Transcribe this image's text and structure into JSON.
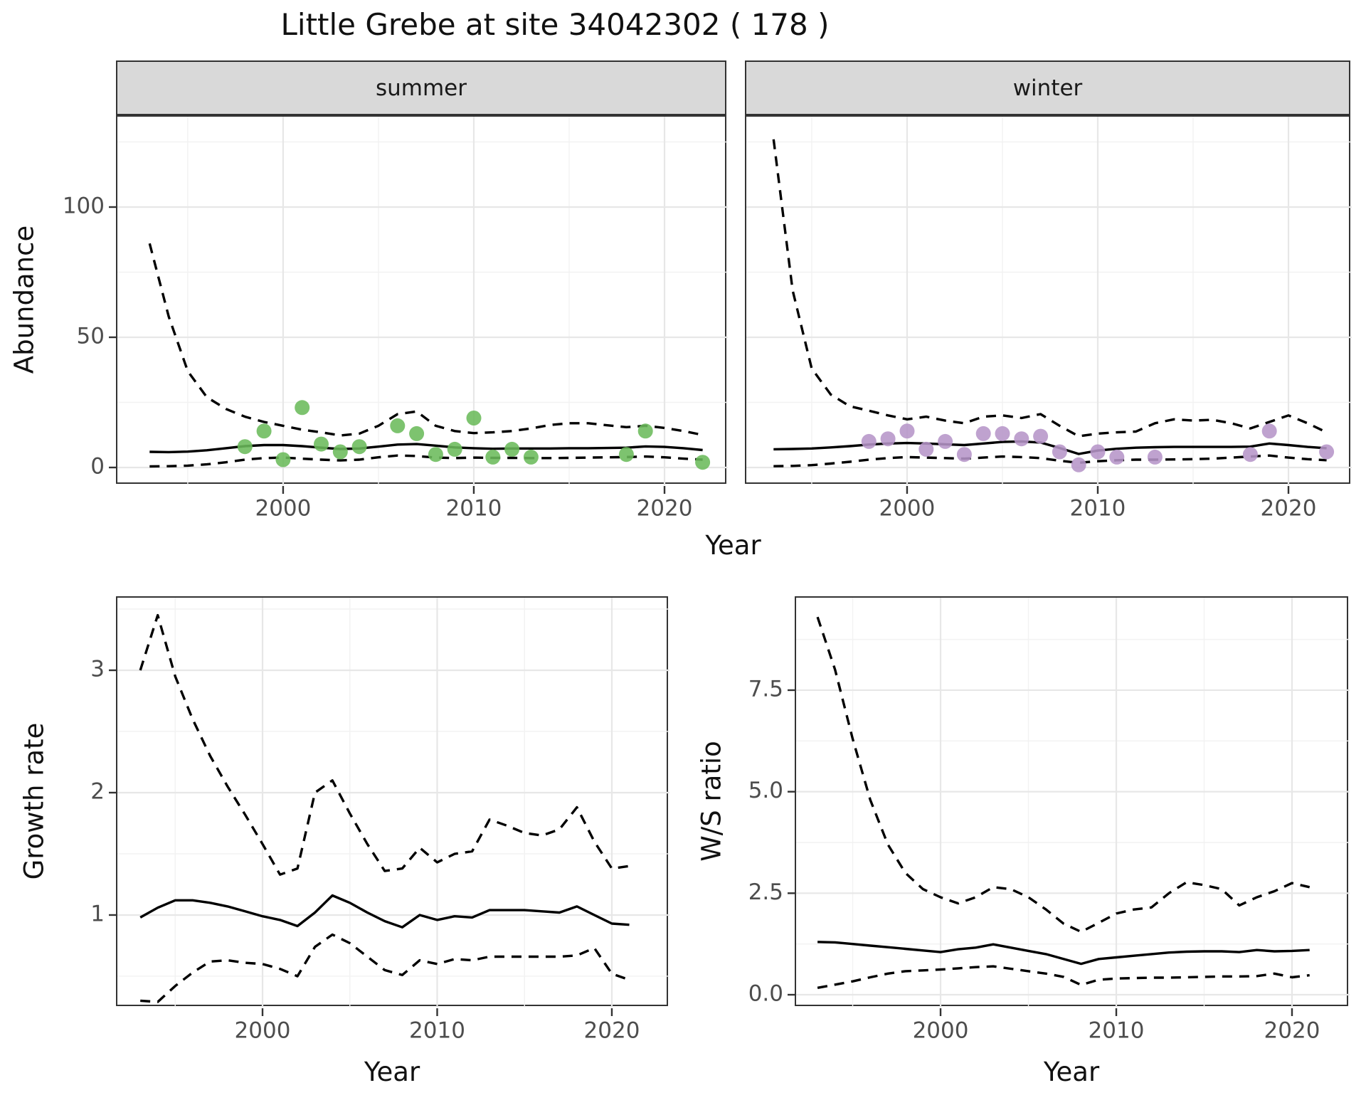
{
  "title": "Little Grebe at site 34042302 ( 178 )",
  "colors": {
    "summer_point": "#6BBB5B",
    "winter_point": "#B695C8",
    "strip_bg": "#D9D9D9",
    "grid_major": "#E7E7E7",
    "grid_minor": "#F2F2F2",
    "panel_border": "#333333",
    "tick_text": "#4D4D4D",
    "line": "#000000"
  },
  "axis_titles": {
    "top_y": "Abundance",
    "top_x": "Year",
    "bottom_left_y": "Growth rate",
    "bottom_left_x": "Year",
    "bottom_right_y": "W/S ratio",
    "bottom_right_x": "Year"
  },
  "chart_data": [
    {
      "type": "line",
      "facet": "summer",
      "ylabel": "Abundance",
      "xlabel": "Year",
      "xlim": [
        1991.31,
        2023.32
      ],
      "ylim": [
        -6.83,
        134.7
      ],
      "xticks": {
        "values": [
          2000,
          2010,
          2020
        ],
        "labels": [
          "2000",
          "2010",
          "2020"
        ]
      },
      "yticks": {
        "values": [
          0,
          50,
          100
        ],
        "labels": [
          "0",
          "50",
          "100"
        ]
      },
      "xminor": [
        1995,
        2005,
        2015
      ],
      "yminor": [
        25,
        75,
        125
      ],
      "grid": true,
      "legend": "none",
      "series": [
        {
          "name": "trend-median",
          "style": "solid",
          "years": [
            1993,
            1994,
            1995,
            1996,
            1997,
            1998,
            1999,
            2000,
            2001,
            2002,
            2003,
            2004,
            2005,
            2006,
            2007,
            2008,
            2009,
            2010,
            2011,
            2012,
            2013,
            2014,
            2015,
            2016,
            2017,
            2018,
            2019,
            2020,
            2021,
            2022
          ],
          "values": [
            6.0,
            5.9,
            6.1,
            6.6,
            7.4,
            8.2,
            8.6,
            8.6,
            8.2,
            7.6,
            7.1,
            7.3,
            8.0,
            8.8,
            9.0,
            8.4,
            7.7,
            7.4,
            7.2,
            7.3,
            7.3,
            7.3,
            7.4,
            7.4,
            7.5,
            7.6,
            8.1,
            7.9,
            7.4,
            6.7
          ]
        },
        {
          "name": "upper-credible",
          "style": "dashed",
          "years": [
            1993,
            1994,
            1995,
            1996,
            1997,
            1998,
            1999,
            2000,
            2001,
            2002,
            2003,
            2004,
            2005,
            2006,
            2007,
            2008,
            2009,
            2010,
            2011,
            2012,
            2013,
            2014,
            2015,
            2016,
            2017,
            2018,
            2019,
            2020,
            2021,
            2022
          ],
          "values": [
            86,
            58,
            37,
            27,
            22.5,
            19.5,
            17.5,
            16,
            14.5,
            13.5,
            12.3,
            13,
            16,
            20.5,
            21.5,
            16,
            14,
            13.2,
            13.5,
            14,
            15,
            16.3,
            17,
            17,
            16.2,
            15.5,
            16,
            15.2,
            14,
            12.5
          ]
        },
        {
          "name": "lower-credible",
          "style": "dashed",
          "years": [
            1993,
            1994,
            1995,
            1996,
            1997,
            1998,
            1999,
            2000,
            2001,
            2002,
            2003,
            2004,
            2005,
            2006,
            2007,
            2008,
            2009,
            2010,
            2011,
            2012,
            2013,
            2014,
            2015,
            2016,
            2017,
            2018,
            2019,
            2020,
            2021,
            2022
          ],
          "values": [
            0.4,
            0.5,
            0.7,
            1.2,
            2.0,
            3.0,
            3.6,
            3.8,
            3.4,
            3.0,
            2.7,
            3.0,
            3.9,
            4.6,
            4.4,
            3.8,
            3.6,
            3.8,
            3.7,
            3.7,
            3.6,
            3.6,
            3.7,
            3.8,
            3.9,
            4.0,
            4.2,
            3.9,
            3.4,
            3.0
          ]
        }
      ],
      "points": {
        "name": "observed-count-summer",
        "color": "#6BBB5B",
        "years": [
          1998,
          1999,
          2000,
          2001,
          2002,
          2003,
          2004,
          2006,
          2007,
          2008,
          2009,
          2010,
          2011,
          2012,
          2013,
          2018,
          2019,
          2022
        ],
        "values": [
          8,
          14,
          3,
          23,
          9,
          6,
          8,
          16,
          13,
          5,
          7,
          19,
          4,
          7,
          4,
          5,
          14,
          2
        ]
      }
    },
    {
      "type": "line",
      "facet": "winter",
      "ylabel": null,
      "xlabel": "Year",
      "xlim": [
        1991.57,
        2023.32
      ],
      "ylim": [
        -6.83,
        134.7
      ],
      "xticks": {
        "values": [
          2000,
          2010,
          2020
        ],
        "labels": [
          "2000",
          "2010",
          "2020"
        ]
      },
      "yticks": {
        "values": [],
        "labels": []
      },
      "xminor": [
        1995,
        2005,
        2015
      ],
      "yminor": [
        25,
        75,
        125
      ],
      "ygrid_major": [
        0,
        50,
        100
      ],
      "grid": true,
      "legend": "none",
      "series": [
        {
          "name": "trend-median",
          "style": "solid",
          "years": [
            1993,
            1994,
            1995,
            1996,
            1997,
            1998,
            1999,
            2000,
            2001,
            2002,
            2003,
            2004,
            2005,
            2006,
            2007,
            2008,
            2009,
            2010,
            2011,
            2012,
            2013,
            2014,
            2015,
            2016,
            2017,
            2018,
            2019,
            2020,
            2021,
            2022
          ],
          "values": [
            7.0,
            7.1,
            7.3,
            7.7,
            8.2,
            8.8,
            9.2,
            9.4,
            9.2,
            8.9,
            8.6,
            9.2,
            9.8,
            10.0,
            9.6,
            7.5,
            5.2,
            6.5,
            7.2,
            7.6,
            7.8,
            7.9,
            7.9,
            7.9,
            7.9,
            8.0,
            9.2,
            8.6,
            7.9,
            7.4
          ]
        },
        {
          "name": "upper-credible",
          "style": "dashed",
          "years": [
            1993,
            1994,
            1995,
            1996,
            1997,
            1998,
            1999,
            2000,
            2001,
            2002,
            2003,
            2004,
            2005,
            2006,
            2007,
            2008,
            2009,
            2010,
            2011,
            2012,
            2013,
            2014,
            2015,
            2016,
            2017,
            2018,
            2019,
            2020,
            2021,
            2022
          ],
          "values": [
            126,
            68,
            38,
            28,
            23.5,
            21.8,
            20,
            18.5,
            19.5,
            18,
            17,
            19.5,
            20,
            19,
            20.5,
            16,
            12,
            13,
            13.5,
            13.8,
            17,
            18.5,
            18,
            18.3,
            17,
            15,
            17.5,
            20,
            17,
            13.5
          ]
        },
        {
          "name": "lower-credible",
          "style": "dashed",
          "years": [
            1993,
            1994,
            1995,
            1996,
            1997,
            1998,
            1999,
            2000,
            2001,
            2002,
            2003,
            2004,
            2005,
            2006,
            2007,
            2008,
            2009,
            2010,
            2011,
            2012,
            2013,
            2014,
            2015,
            2016,
            2017,
            2018,
            2019,
            2020,
            2021,
            2022
          ],
          "values": [
            0.5,
            0.6,
            0.9,
            1.5,
            2.2,
            3.0,
            3.6,
            4.0,
            3.8,
            3.6,
            3.4,
            3.8,
            4.2,
            4.0,
            3.6,
            2.6,
            1.8,
            2.4,
            2.8,
            3.0,
            3.0,
            3.1,
            3.2,
            3.4,
            3.8,
            4.2,
            4.6,
            3.8,
            3.2,
            2.8
          ]
        }
      ],
      "points": {
        "name": "observed-count-winter",
        "color": "#B695C8",
        "years": [
          1998,
          1999,
          2000,
          2001,
          2002,
          2003,
          2004,
          2005,
          2006,
          2007,
          2008,
          2009,
          2010,
          2011,
          2013,
          2018,
          2019,
          2022
        ],
        "values": [
          10,
          11,
          14,
          7,
          10,
          5,
          13,
          13,
          11,
          12,
          6,
          1,
          6,
          4,
          4,
          5,
          14,
          6
        ]
      }
    },
    {
      "type": "line",
      "facet": null,
      "ylabel": "Growth rate",
      "xlabel": "Year",
      "xlim": [
        1991.69,
        2023.3
      ],
      "ylim": [
        0.244,
        3.593
      ],
      "xticks": {
        "values": [
          2000,
          2010,
          2020
        ],
        "labels": [
          "2000",
          "2010",
          "2020"
        ]
      },
      "yticks": {
        "values": [
          1,
          2,
          3
        ],
        "labels": [
          "1",
          "2",
          "3"
        ]
      },
      "xminor": [
        1995,
        2005,
        2015
      ],
      "yminor": [
        0.5,
        1.5,
        2.5,
        3.5
      ],
      "grid": true,
      "legend": "none",
      "series": [
        {
          "name": "growth-median",
          "style": "solid",
          "years": [
            1993,
            1994,
            1995,
            1996,
            1997,
            1998,
            1999,
            2000,
            2001,
            2002,
            2003,
            2004,
            2005,
            2006,
            2007,
            2008,
            2009,
            2010,
            2011,
            2012,
            2013,
            2014,
            2015,
            2016,
            2017,
            2018,
            2019,
            2020,
            2021
          ],
          "values": [
            0.98,
            1.06,
            1.12,
            1.12,
            1.1,
            1.07,
            1.03,
            0.99,
            0.96,
            0.91,
            1.02,
            1.16,
            1.1,
            1.02,
            0.95,
            0.9,
            1.0,
            0.96,
            0.99,
            0.98,
            1.04,
            1.04,
            1.04,
            1.03,
            1.02,
            1.07,
            1.0,
            0.93,
            0.92
          ]
        },
        {
          "name": "growth-upper",
          "style": "dashed",
          "years": [
            1993,
            1994,
            1995,
            1996,
            1997,
            1998,
            1999,
            2000,
            2001,
            2002,
            2003,
            2004,
            2005,
            2006,
            2007,
            2008,
            2009,
            2010,
            2011,
            2012,
            2013,
            2014,
            2015,
            2016,
            2017,
            2018,
            2019,
            2020,
            2021
          ],
          "values": [
            3.0,
            3.45,
            2.95,
            2.6,
            2.3,
            2.05,
            1.82,
            1.58,
            1.33,
            1.38,
            2.0,
            2.1,
            1.83,
            1.58,
            1.36,
            1.38,
            1.55,
            1.43,
            1.5,
            1.52,
            1.78,
            1.73,
            1.67,
            1.65,
            1.7,
            1.88,
            1.6,
            1.38,
            1.4
          ]
        },
        {
          "name": "growth-lower",
          "style": "dashed",
          "years": [
            1993,
            1994,
            1995,
            1996,
            1997,
            1998,
            1999,
            2000,
            2001,
            2002,
            2003,
            2004,
            2005,
            2006,
            2007,
            2008,
            2009,
            2010,
            2011,
            2012,
            2013,
            2014,
            2015,
            2016,
            2017,
            2018,
            2019,
            2020,
            2021
          ],
          "values": [
            0.3,
            0.29,
            0.42,
            0.53,
            0.62,
            0.63,
            0.61,
            0.6,
            0.56,
            0.5,
            0.74,
            0.84,
            0.77,
            0.66,
            0.55,
            0.51,
            0.63,
            0.6,
            0.64,
            0.63,
            0.66,
            0.66,
            0.66,
            0.66,
            0.66,
            0.67,
            0.73,
            0.52,
            0.47
          ]
        }
      ]
    },
    {
      "type": "line",
      "facet": null,
      "ylabel": "W/S ratio",
      "xlabel": "Year",
      "xlim": [
        1991.78,
        2023.28
      ],
      "ylim": [
        -0.315,
        9.777
      ],
      "xticks": {
        "values": [
          2000,
          2010,
          2020
        ],
        "labels": [
          "2000",
          "2010",
          "2020"
        ]
      },
      "yticks": {
        "values": [
          0.0,
          2.5,
          5.0,
          7.5
        ],
        "labels": [
          "0.0",
          "2.5",
          "5.0",
          "7.5"
        ]
      },
      "xminor": [
        1995,
        2005,
        2015
      ],
      "yminor": [
        1.25,
        3.75,
        6.25,
        8.75
      ],
      "grid": true,
      "legend": "none",
      "series": [
        {
          "name": "ratio-median",
          "style": "solid",
          "years": [
            1993,
            1994,
            1995,
            1996,
            1997,
            1998,
            1999,
            2000,
            2001,
            2002,
            2003,
            2004,
            2005,
            2006,
            2007,
            2008,
            2009,
            2010,
            2011,
            2012,
            2013,
            2014,
            2015,
            2016,
            2017,
            2018,
            2019,
            2020,
            2021
          ],
          "values": [
            1.3,
            1.29,
            1.25,
            1.21,
            1.17,
            1.13,
            1.09,
            1.05,
            1.12,
            1.16,
            1.24,
            1.16,
            1.08,
            1.0,
            0.88,
            0.76,
            0.88,
            0.92,
            0.96,
            1.0,
            1.04,
            1.06,
            1.07,
            1.07,
            1.05,
            1.1,
            1.07,
            1.08,
            1.1
          ]
        },
        {
          "name": "ratio-upper",
          "style": "dashed",
          "years": [
            1993,
            1994,
            1995,
            1996,
            1997,
            1998,
            1999,
            2000,
            2001,
            2002,
            2003,
            2004,
            2005,
            2006,
            2007,
            2008,
            2009,
            2010,
            2011,
            2012,
            2013,
            2014,
            2015,
            2016,
            2017,
            2018,
            2019,
            2020,
            2021
          ],
          "values": [
            9.3,
            8.0,
            6.3,
            4.8,
            3.7,
            3.0,
            2.6,
            2.4,
            2.25,
            2.4,
            2.65,
            2.6,
            2.4,
            2.1,
            1.75,
            1.55,
            1.77,
            2.0,
            2.1,
            2.15,
            2.5,
            2.77,
            2.7,
            2.6,
            2.2,
            2.4,
            2.55,
            2.75,
            2.65
          ]
        },
        {
          "name": "ratio-lower",
          "style": "dashed",
          "years": [
            1993,
            1994,
            1995,
            1996,
            1997,
            1998,
            1999,
            2000,
            2001,
            2002,
            2003,
            2004,
            2005,
            2006,
            2007,
            2008,
            2009,
            2010,
            2011,
            2012,
            2013,
            2014,
            2015,
            2016,
            2017,
            2018,
            2019,
            2020,
            2021
          ],
          "values": [
            0.17,
            0.25,
            0.33,
            0.43,
            0.52,
            0.58,
            0.6,
            0.62,
            0.65,
            0.68,
            0.7,
            0.64,
            0.58,
            0.52,
            0.44,
            0.24,
            0.37,
            0.4,
            0.41,
            0.42,
            0.42,
            0.43,
            0.44,
            0.45,
            0.45,
            0.46,
            0.52,
            0.43,
            0.48
          ]
        }
      ]
    }
  ]
}
